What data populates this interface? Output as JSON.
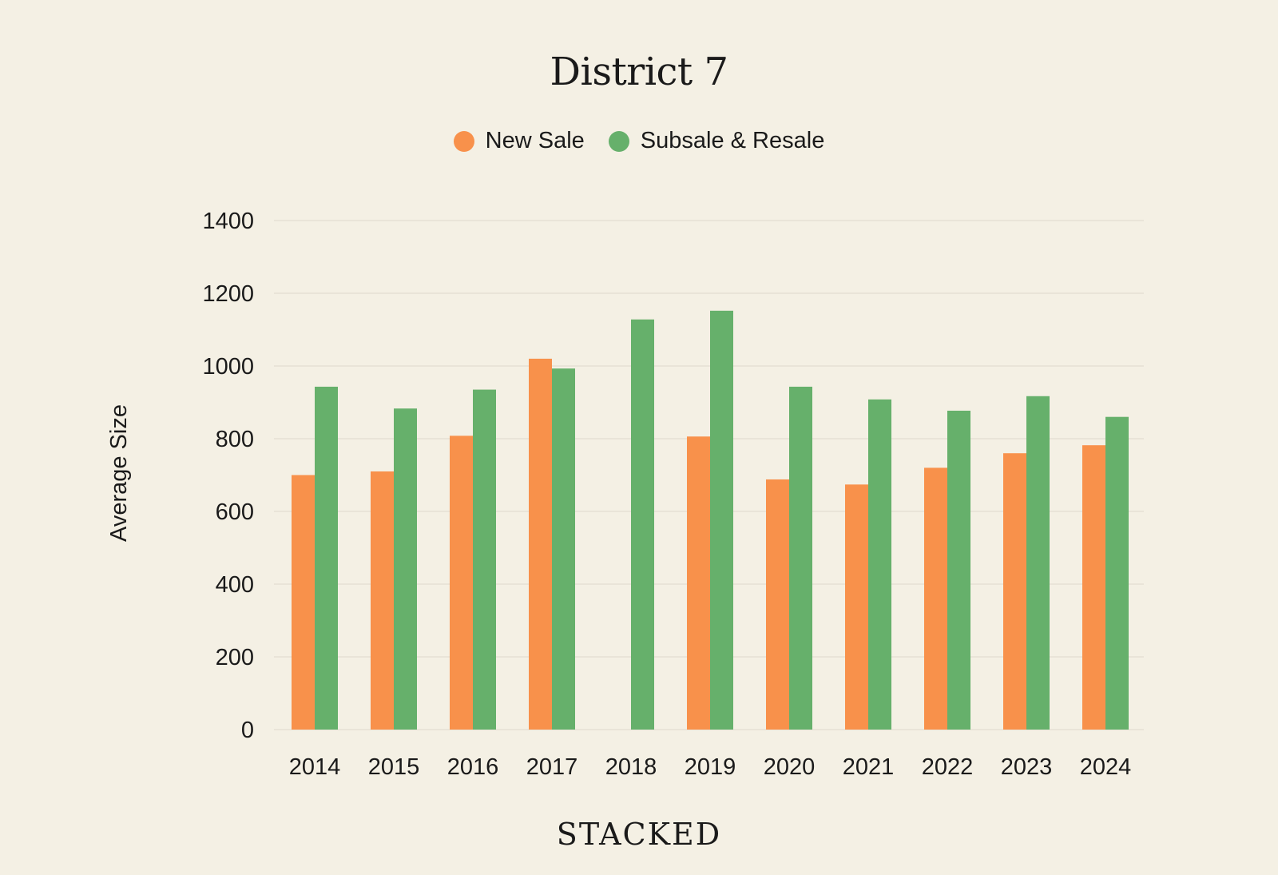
{
  "chart_data": {
    "type": "bar",
    "title": "District 7",
    "xlabel": "",
    "ylabel": "Average Size",
    "ylim": [
      0,
      1400
    ],
    "yticks": [
      0,
      200,
      400,
      600,
      800,
      1000,
      1200,
      1400
    ],
    "grid": true,
    "legend_position": "top-center",
    "categories": [
      "2014",
      "2015",
      "2016",
      "2017",
      "2018",
      "2019",
      "2020",
      "2021",
      "2022",
      "2023",
      "2024"
    ],
    "series": [
      {
        "name": "New Sale",
        "color": "#f8914b",
        "values": [
          700,
          710,
          808,
          1020,
          null,
          806,
          688,
          674,
          720,
          760,
          782
        ]
      },
      {
        "name": "Subsale & Resale",
        "color": "#66b06b",
        "values": [
          943,
          883,
          935,
          993,
          1128,
          1152,
          943,
          908,
          877,
          917,
          860
        ]
      }
    ]
  },
  "legend": {
    "items": [
      {
        "label": "New Sale",
        "color": "#f8914b"
      },
      {
        "label": "Subsale & Resale",
        "color": "#66b06b"
      }
    ]
  },
  "brand": "STACKED"
}
